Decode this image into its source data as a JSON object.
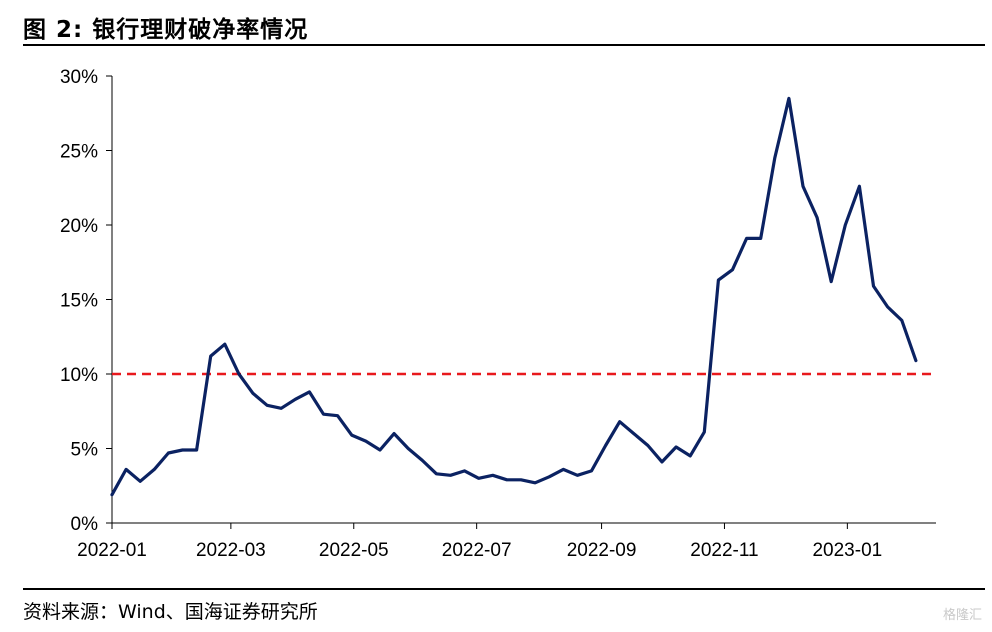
{
  "header": {
    "title": "图 2:  银行理财破净率情况"
  },
  "footer": {
    "source": "资料来源：Wind、国海证券研究所",
    "watermark": "格隆汇"
  },
  "chart_data": {
    "type": "line",
    "title": "",
    "xlabel": "",
    "ylabel": "",
    "ylim": [
      0,
      30
    ],
    "yticks": [
      "0%",
      "5%",
      "10%",
      "15%",
      "20%",
      "25%",
      "30%"
    ],
    "xticks": [
      "2022-01",
      "2022-03",
      "2022-05",
      "2022-07",
      "2022-09",
      "2022-11",
      "2023-01"
    ],
    "reference_line": {
      "y": 10,
      "color": "#e8191d",
      "style": "dashed"
    },
    "series": [
      {
        "color": "#0b2262",
        "points": [
          [
            "2022-01-01",
            1.9
          ],
          [
            "2022-01-08",
            3.6
          ],
          [
            "2022-01-15",
            2.8
          ],
          [
            "2022-01-22",
            3.6
          ],
          [
            "2022-01-29",
            4.7
          ],
          [
            "2022-02-05",
            4.9
          ],
          [
            "2022-02-12",
            4.9
          ],
          [
            "2022-02-19",
            11.2
          ],
          [
            "2022-02-26",
            12.0
          ],
          [
            "2022-03-05",
            10.0
          ],
          [
            "2022-03-12",
            8.7
          ],
          [
            "2022-03-19",
            7.9
          ],
          [
            "2022-03-26",
            7.7
          ],
          [
            "2022-04-02",
            8.3
          ],
          [
            "2022-04-09",
            8.8
          ],
          [
            "2022-04-16",
            7.3
          ],
          [
            "2022-04-23",
            7.2
          ],
          [
            "2022-04-30",
            5.9
          ],
          [
            "2022-05-07",
            5.5
          ],
          [
            "2022-05-14",
            4.9
          ],
          [
            "2022-05-21",
            6.0
          ],
          [
            "2022-05-28",
            5.0
          ],
          [
            "2022-06-04",
            4.2
          ],
          [
            "2022-06-11",
            3.3
          ],
          [
            "2022-06-18",
            3.2
          ],
          [
            "2022-06-25",
            3.5
          ],
          [
            "2022-07-02",
            3.0
          ],
          [
            "2022-07-09",
            3.2
          ],
          [
            "2022-07-16",
            2.9
          ],
          [
            "2022-07-23",
            2.9
          ],
          [
            "2022-07-30",
            2.7
          ],
          [
            "2022-08-06",
            3.1
          ],
          [
            "2022-08-13",
            3.6
          ],
          [
            "2022-08-20",
            3.2
          ],
          [
            "2022-08-27",
            3.5
          ],
          [
            "2022-09-03",
            5.2
          ],
          [
            "2022-09-10",
            6.8
          ],
          [
            "2022-09-17",
            6.0
          ],
          [
            "2022-09-24",
            5.2
          ],
          [
            "2022-10-01",
            4.1
          ],
          [
            "2022-10-08",
            5.1
          ],
          [
            "2022-10-15",
            4.5
          ],
          [
            "2022-10-22",
            6.1
          ],
          [
            "2022-10-29",
            16.3
          ],
          [
            "2022-11-05",
            17.0
          ],
          [
            "2022-11-12",
            19.1
          ],
          [
            "2022-11-19",
            19.1
          ],
          [
            "2022-11-26",
            24.5
          ],
          [
            "2022-12-03",
            28.5
          ],
          [
            "2022-12-10",
            22.6
          ],
          [
            "2022-12-17",
            20.5
          ],
          [
            "2022-12-24",
            16.2
          ],
          [
            "2022-12-31",
            20.0
          ],
          [
            "2023-01-07",
            22.6
          ],
          [
            "2023-01-14",
            15.9
          ],
          [
            "2023-01-21",
            14.5
          ],
          [
            "2023-01-28",
            13.6
          ],
          [
            "2023-02-04",
            10.9
          ]
        ]
      }
    ]
  }
}
